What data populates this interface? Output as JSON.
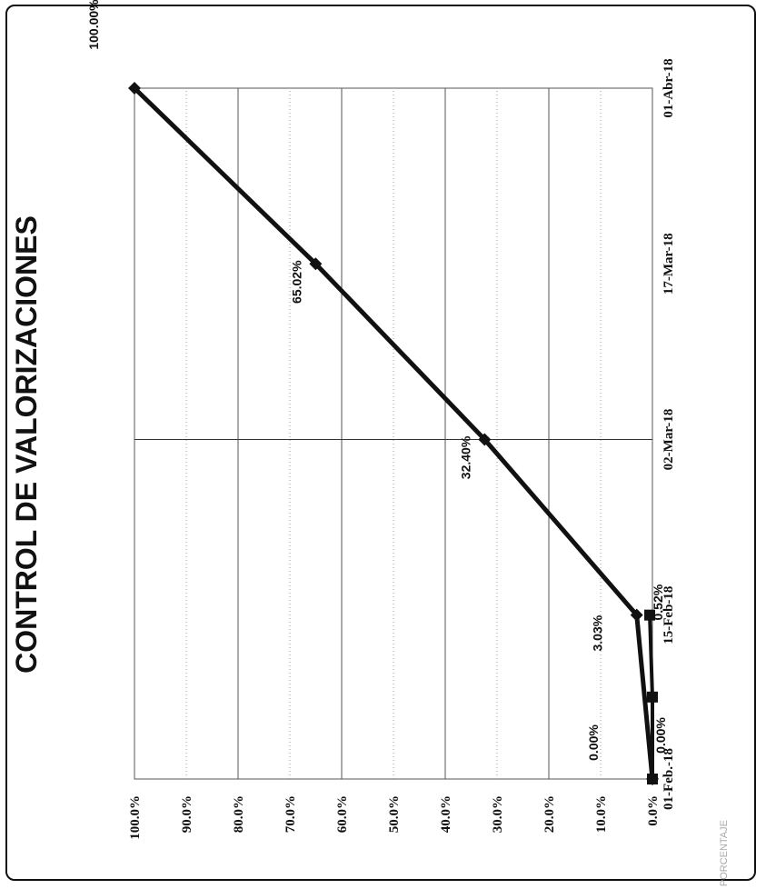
{
  "chart_data": {
    "type": "line",
    "title": "CONTROL DE VALORIZACIONES",
    "xlabel": "",
    "ylabel": "PORCENTAJE",
    "x_tick_labels": [
      "01-Feb.-18",
      "15-Feb-18",
      "02-Mar-18",
      "17-Mar-18",
      "01-Abr-18"
    ],
    "xlim": [
      "2018-02-01",
      "2018-04-01"
    ],
    "y_tick_labels": [
      "0.0%",
      "10.0%",
      "20.0%",
      "30.0%",
      "40.0%",
      "50.0%",
      "60.0%",
      "70.0%",
      "80.0%",
      "90.0%",
      "100.0%"
    ],
    "ylim": [
      0,
      100
    ],
    "grid": true,
    "orientation": "rotated-90-ccw",
    "series": [
      {
        "marker": "diamond",
        "color": "#111111",
        "points": [
          {
            "x": "2018-02-01",
            "y": 0.0,
            "label": "0.00%"
          },
          {
            "x": "2018-02-15",
            "y": 3.03,
            "label": "3.03%"
          },
          {
            "x": "2018-03-02",
            "y": 32.4,
            "label": "32.40%"
          },
          {
            "x": "2018-03-17",
            "y": 65.02,
            "label": "65.02%"
          },
          {
            "x": "2018-04-01",
            "y": 100.0,
            "label": "100.00%"
          }
        ]
      },
      {
        "marker": "square",
        "color": "#111111",
        "points": [
          {
            "x": "2018-02-01",
            "y": 0.0,
            "label": "0.00%"
          },
          {
            "x": "2018-02-08",
            "y": 0.0,
            "label": ""
          },
          {
            "x": "2018-02-15",
            "y": 0.52,
            "label": "0.52%"
          }
        ]
      }
    ]
  }
}
